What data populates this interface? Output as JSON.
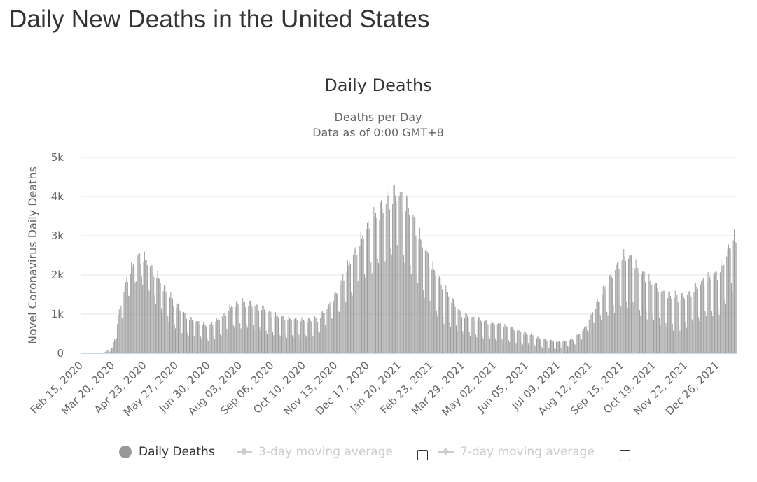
{
  "page_title": "Daily New Deaths in the United States",
  "chart_data": {
    "type": "bar",
    "title": "Daily Deaths",
    "subtitle_lines": [
      "Deaths per Day",
      "Data as of 0:00 GMT+8"
    ],
    "ylabel": "Novel Coronavirus Daily Deaths",
    "xlabel": "",
    "ylim": [
      0,
      5000
    ],
    "y_ticks": [
      0,
      1000,
      2000,
      3000,
      4000,
      5000
    ],
    "y_tick_labels": [
      "0",
      "1k",
      "2k",
      "3k",
      "4k",
      "5k"
    ],
    "x_start": "2020-02-15",
    "x_end": "2022-01-15",
    "x_tick_labels": [
      "Feb 15, 2020",
      "Mar 20, 2020",
      "Apr 23, 2020",
      "May 27, 2020",
      "Jun 30, 2020",
      "Aug 03, 2020",
      "Sep 06, 2020",
      "Oct 10, 2020",
      "Nov 13, 2020",
      "Dec 17, 2020",
      "Jan 20, 2021",
      "Feb 23, 2021",
      "Mar 29, 2021",
      "May 02, 2021",
      "Jun 05, 2021",
      "Jul 09, 2021",
      "Aug 12, 2021",
      "Sep 15, 2021",
      "Oct 19, 2021",
      "Nov 22, 2021",
      "Dec 26, 2021"
    ],
    "grid": true,
    "bar_color": "#999999",
    "grid_color": "#e6e6e6",
    "trend_keyframes": [
      [
        "2020-02-15",
        0,
        0
      ],
      [
        "2020-03-10",
        10,
        5
      ],
      [
        "2020-03-20",
        150,
        60
      ],
      [
        "2020-03-28",
        1200,
        700
      ],
      [
        "2020-04-05",
        2000,
        1300
      ],
      [
        "2020-04-15",
        2500,
        1900
      ],
      [
        "2020-04-23",
        2450,
        1800
      ],
      [
        "2020-05-05",
        2050,
        1300
      ],
      [
        "2020-05-15",
        1650,
        900
      ],
      [
        "2020-05-27",
        1250,
        600
      ],
      [
        "2020-06-10",
        900,
        420
      ],
      [
        "2020-06-30",
        700,
        320
      ],
      [
        "2020-07-15",
        950,
        450
      ],
      [
        "2020-07-28",
        1280,
        650
      ],
      [
        "2020-08-10",
        1320,
        650
      ],
      [
        "2020-08-25",
        1200,
        560
      ],
      [
        "2020-09-06",
        1020,
        450
      ],
      [
        "2020-09-25",
        900,
        400
      ],
      [
        "2020-10-10",
        850,
        400
      ],
      [
        "2020-10-25",
        900,
        480
      ],
      [
        "2020-11-05",
        1200,
        700
      ],
      [
        "2020-11-13",
        1500,
        950
      ],
      [
        "2020-11-25",
        2200,
        1300
      ],
      [
        "2020-12-05",
        2700,
        1600
      ],
      [
        "2020-12-17",
        3250,
        2000
      ],
      [
        "2020-12-30",
        3700,
        2300
      ],
      [
        "2021-01-10",
        4100,
        2500
      ],
      [
        "2021-01-20",
        4150,
        2400
      ],
      [
        "2021-02-01",
        3700,
        2100
      ],
      [
        "2021-02-10",
        3100,
        1700
      ],
      [
        "2021-02-23",
        2300,
        1100
      ],
      [
        "2021-03-10",
        1650,
        750
      ],
      [
        "2021-03-29",
        1000,
        500
      ],
      [
        "2021-04-15",
        880,
        380
      ],
      [
        "2021-05-02",
        780,
        330
      ],
      [
        "2021-05-20",
        660,
        280
      ],
      [
        "2021-06-05",
        520,
        200
      ],
      [
        "2021-06-20",
        380,
        150
      ],
      [
        "2021-07-09",
        290,
        100
      ],
      [
        "2021-07-25",
        360,
        200
      ],
      [
        "2021-08-05",
        600,
        380
      ],
      [
        "2021-08-12",
        950,
        650
      ],
      [
        "2021-08-25",
        1550,
        900
      ],
      [
        "2021-09-05",
        2050,
        1000
      ],
      [
        "2021-09-15",
        2550,
        1200
      ],
      [
        "2021-09-25",
        2450,
        1150
      ],
      [
        "2021-10-05",
        2100,
        950
      ],
      [
        "2021-10-19",
        1800,
        850
      ],
      [
        "2021-11-01",
        1550,
        650
      ],
      [
        "2021-11-15",
        1450,
        550
      ],
      [
        "2021-11-22",
        1500,
        650
      ],
      [
        "2021-12-05",
        1750,
        800
      ],
      [
        "2021-12-15",
        1950,
        950
      ],
      [
        "2021-12-26",
        2050,
        950
      ],
      [
        "2022-01-05",
        2500,
        1300
      ],
      [
        "2022-01-11",
        3100,
        1600
      ],
      [
        "2022-01-15",
        2800,
        1400
      ]
    ],
    "legend": [
      {
        "name": "Daily Deaths",
        "visible": true
      },
      {
        "name": "3-day moving average",
        "visible": false
      },
      {
        "name": "7-day moving average",
        "visible": false
      }
    ]
  }
}
